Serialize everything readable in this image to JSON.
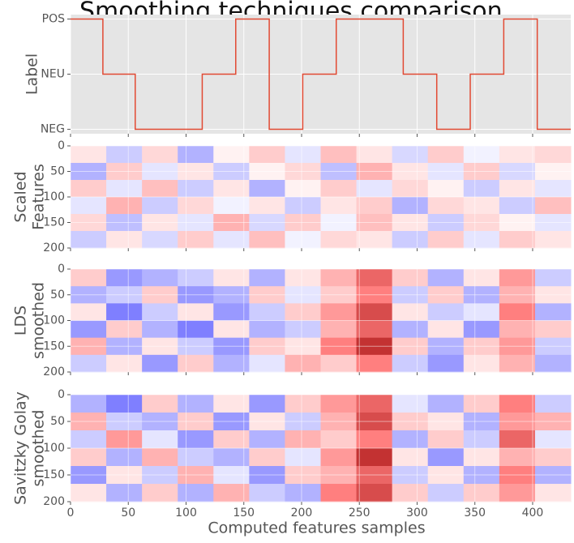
{
  "chart_data": [
    {
      "type": "line",
      "title": "Smoothing techniques comparison",
      "ylabel": [
        "Label"
      ],
      "color": "#e24a33",
      "background": "#e5e5e5",
      "grid": true,
      "x": [
        0,
        28,
        28,
        56,
        56,
        114,
        114,
        143,
        143,
        172,
        172,
        201,
        201,
        230,
        230,
        288,
        288,
        317,
        317,
        346,
        346,
        375,
        375,
        404,
        404,
        433
      ],
      "values": [
        1,
        1,
        0,
        0,
        -1,
        -1,
        0,
        0,
        1,
        1,
        -1,
        -1,
        0,
        0,
        1,
        1,
        0,
        0,
        -1,
        -1,
        0,
        0,
        1,
        1,
        -1,
        -1
      ],
      "xlim": [
        0,
        433
      ],
      "xticks": [
        0,
        50,
        100,
        150,
        200,
        250,
        300,
        350,
        400
      ],
      "ylim": [
        -1.08,
        1.08
      ],
      "yticks": [
        {
          "value": -1,
          "label": "NEG"
        },
        {
          "value": 0,
          "label": "NEU"
        },
        {
          "value": 1,
          "label": "POS"
        }
      ]
    },
    {
      "type": "heatmap",
      "ylabel": [
        "Scaled",
        "Features"
      ],
      "xlim": [
        0,
        433
      ],
      "xticks": [
        0,
        50,
        100,
        150,
        200,
        250,
        300,
        350,
        400
      ],
      "ylim": [
        200,
        0
      ],
      "yticks": [
        0,
        50,
        100,
        150,
        200
      ],
      "zlim": [
        -1,
        1
      ],
      "z": [
        [
          0.1,
          -0.2,
          0.15,
          -0.3,
          0.05,
          0.2,
          -0.1,
          0.25,
          0.1,
          -0.15,
          0.2,
          -0.05,
          0.1,
          0.15
        ],
        [
          -0.3,
          0.2,
          -0.1,
          0.1,
          -0.2,
          0.05,
          0.15,
          -0.25,
          0.3,
          0.1,
          -0.1,
          0.2,
          -0.15,
          0.05
        ],
        [
          0.2,
          -0.1,
          0.25,
          -0.2,
          0.1,
          -0.3,
          0.05,
          0.2,
          -0.1,
          0.15,
          0.05,
          -0.2,
          0.1,
          -0.1
        ],
        [
          -0.1,
          0.3,
          -0.2,
          0.15,
          -0.05,
          0.1,
          -0.2,
          0.1,
          0.2,
          -0.3,
          0.15,
          0.1,
          -0.2,
          0.25
        ],
        [
          0.15,
          -0.25,
          0.1,
          -0.1,
          0.3,
          -0.15,
          0.2,
          -0.05,
          0.25,
          0.1,
          -0.2,
          0.15,
          0.05,
          -0.1
        ],
        [
          -0.2,
          0.1,
          -0.15,
          0.2,
          -0.1,
          0.25,
          -0.05,
          0.15,
          0.1,
          -0.2,
          0.2,
          -0.1,
          0.2,
          0.1
        ]
      ]
    },
    {
      "type": "heatmap",
      "ylabel": [
        "LDS",
        "smoothed"
      ],
      "xlim": [
        0,
        433
      ],
      "xticks": [
        0,
        50,
        100,
        150,
        200,
        250,
        300,
        350,
        400
      ],
      "ylim": [
        200,
        0
      ],
      "yticks": [
        0,
        50,
        100,
        150,
        200
      ],
      "zlim": [
        -1,
        1
      ],
      "z": [
        [
          0.2,
          -0.4,
          -0.3,
          -0.2,
          0.1,
          -0.3,
          0.1,
          0.3,
          0.6,
          0.2,
          -0.3,
          0.1,
          0.4,
          -0.2
        ],
        [
          -0.3,
          -0.2,
          0.2,
          -0.4,
          -0.3,
          0.2,
          -0.1,
          0.2,
          0.5,
          -0.2,
          0.2,
          -0.3,
          0.3,
          0.1
        ],
        [
          0.1,
          -0.5,
          -0.2,
          0.1,
          -0.4,
          -0.2,
          0.2,
          0.4,
          0.7,
          0.1,
          -0.2,
          -0.1,
          0.5,
          -0.3
        ],
        [
          -0.4,
          0.2,
          -0.3,
          -0.5,
          0.1,
          -0.3,
          -0.2,
          0.3,
          0.6,
          -0.3,
          0.1,
          -0.4,
          0.3,
          0.2
        ],
        [
          0.3,
          -0.3,
          0.1,
          -0.2,
          -0.4,
          0.2,
          0.1,
          0.5,
          0.8,
          0.2,
          -0.3,
          0.2,
          0.4,
          -0.2
        ],
        [
          -0.2,
          0.1,
          -0.4,
          0.2,
          -0.3,
          -0.1,
          0.3,
          0.2,
          0.5,
          -0.2,
          -0.4,
          0.1,
          0.3,
          -0.3
        ]
      ]
    },
    {
      "type": "heatmap",
      "ylabel": [
        "Savitzky Golay",
        "smoothed"
      ],
      "xlim": [
        0,
        433
      ],
      "xticks": [
        0,
        50,
        100,
        150,
        200,
        250,
        300,
        350,
        400
      ],
      "xlabel": "Computed features samples",
      "ylim": [
        200,
        0
      ],
      "yticks": [
        0,
        50,
        100,
        150,
        200
      ],
      "zlim": [
        -1,
        1
      ],
      "z": [
        [
          -0.3,
          -0.5,
          0.2,
          -0.3,
          0.1,
          -0.4,
          0.2,
          0.4,
          0.6,
          -0.1,
          -0.3,
          0.2,
          0.5,
          -0.2
        ],
        [
          0.3,
          -0.2,
          -0.3,
          0.2,
          -0.4,
          0.1,
          -0.2,
          0.3,
          0.7,
          0.2,
          0.1,
          -0.3,
          0.4,
          0.3
        ],
        [
          -0.2,
          0.4,
          -0.1,
          -0.4,
          0.2,
          -0.3,
          0.3,
          0.2,
          0.5,
          -0.3,
          0.2,
          -0.2,
          0.6,
          -0.1
        ],
        [
          0.2,
          -0.3,
          0.3,
          -0.2,
          -0.3,
          0.2,
          -0.1,
          0.4,
          0.8,
          0.1,
          -0.4,
          0.1,
          0.3,
          0.2
        ],
        [
          -0.4,
          0.1,
          -0.2,
          0.3,
          -0.1,
          -0.4,
          0.2,
          0.3,
          0.6,
          -0.2,
          0.1,
          -0.3,
          0.5,
          -0.3
        ],
        [
          0.1,
          -0.3,
          0.2,
          -0.3,
          0.3,
          -0.2,
          -0.3,
          0.5,
          0.7,
          0.2,
          -0.2,
          0.2,
          0.4,
          0.1
        ]
      ]
    }
  ]
}
